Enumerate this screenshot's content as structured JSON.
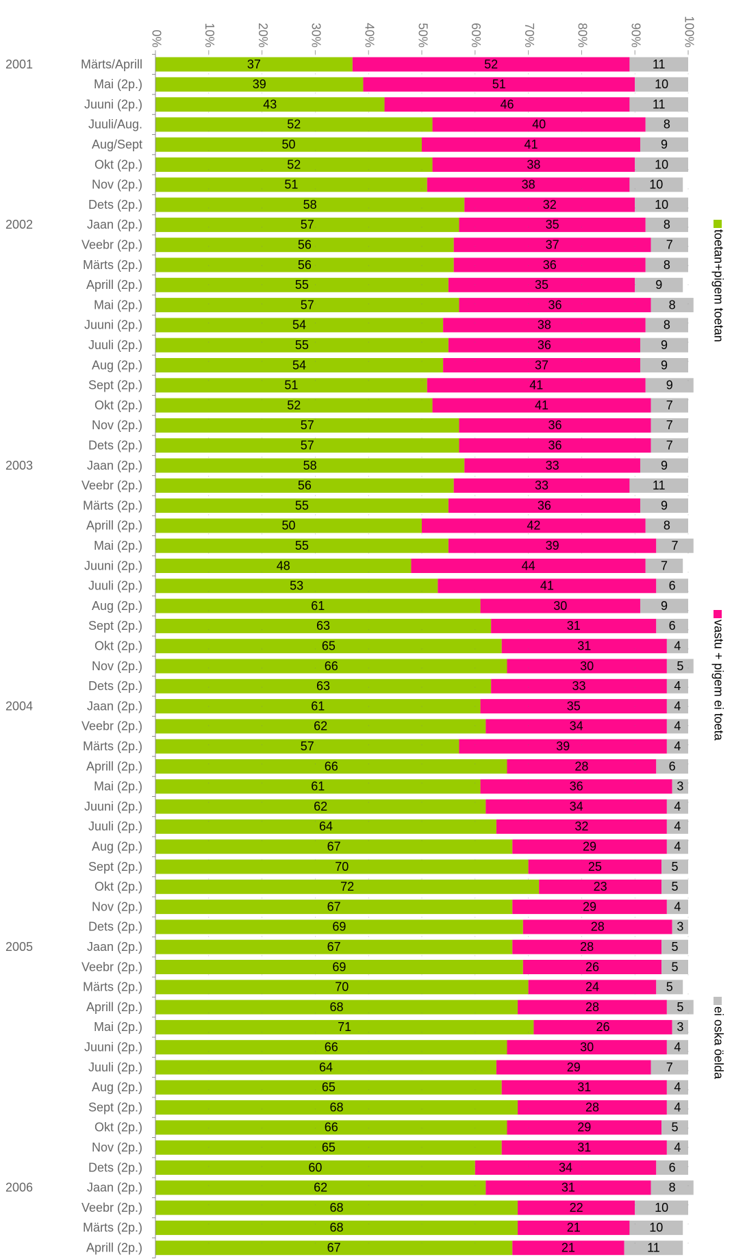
{
  "chart_data": {
    "type": "stacked-barh",
    "xlim": [
      0,
      100
    ],
    "xticks": [
      {
        "value": 0,
        "label": "0%"
      },
      {
        "value": 10,
        "label": "10%"
      },
      {
        "value": 20,
        "label": "20%"
      },
      {
        "value": 30,
        "label": "30%"
      },
      {
        "value": 40,
        "label": "40%"
      },
      {
        "value": 50,
        "label": "50%"
      },
      {
        "value": 60,
        "label": "60%"
      },
      {
        "value": 70,
        "label": "70%"
      },
      {
        "value": 80,
        "label": "80%"
      },
      {
        "value": 90,
        "label": "90%"
      },
      {
        "value": 100,
        "label": "100%"
      }
    ],
    "grid": true,
    "legend": "right",
    "year_labels": [
      "2001",
      null,
      null,
      null,
      null,
      null,
      null,
      null,
      "2002",
      null,
      null,
      null,
      null,
      null,
      null,
      null,
      null,
      null,
      null,
      null,
      "2003",
      null,
      null,
      null,
      null,
      null,
      null,
      null,
      null,
      null,
      null,
      null,
      "2004",
      null,
      null,
      null,
      null,
      null,
      null,
      null,
      null,
      null,
      null,
      null,
      "2005",
      null,
      null,
      null,
      null,
      null,
      null,
      null,
      null,
      null,
      null,
      null,
      "2006",
      null,
      null,
      null
    ],
    "categories": [
      "Märts/Aprill",
      "Mai (2p.)",
      "Juuni (2p.)",
      "Juuli/Aug.",
      "Aug/Sept",
      "Okt (2p.)",
      "Nov (2p.)",
      "Dets (2p.)",
      "Jaan (2p.)",
      "Veebr (2p.)",
      "Märts (2p.)",
      "Aprill (2p.)",
      "Mai (2p.)",
      "Juuni (2p.)",
      "Juuli (2p.)",
      "Aug (2p.)",
      "Sept (2p.)",
      "Okt (2p.)",
      "Nov (2p.)",
      "Dets (2p.)",
      "Jaan (2p.)",
      "Veebr (2p.)",
      "Märts (2p.)",
      "Aprill (2p.)",
      "Mai (2p.)",
      "Juuni (2p.)",
      "Juuli (2p.)",
      "Aug (2p.)",
      "Sept (2p.)",
      "Okt (2p.)",
      "Nov (2p.)",
      "Dets (2p.)",
      "Jaan (2p.)",
      "Veebr (2p.)",
      "Märts (2p.)",
      "Aprill (2p.)",
      "Mai (2p.)",
      "Juuni (2p.)",
      "Juuli (2p.)",
      "Aug (2p.)",
      "Sept (2p.)",
      "Okt (2p.)",
      "Nov (2p.)",
      "Dets (2p.)",
      "Jaan (2p.)",
      "Veebr (2p.)",
      "Märts (2p.)",
      "Aprill (2p.)",
      "Mai (2p.)",
      "Juuni (2p.)",
      "Juuli (2p.)",
      "Aug (2p.)",
      "Sept (2p.)",
      "Okt (2p.)",
      "Nov (2p.)",
      "Dets (2p.)",
      "Jaan (2p.)",
      "Veebr (2p.)",
      "Märts (2p.)",
      "Aprill (2p.)"
    ],
    "series": [
      {
        "name": "toetan+pigem toetan",
        "color": "#99cc00",
        "values": [
          37,
          39,
          43,
          52,
          50,
          52,
          51,
          58,
          57,
          56,
          56,
          55,
          57,
          54,
          55,
          54,
          51,
          52,
          57,
          57,
          58,
          56,
          55,
          50,
          55,
          48,
          53,
          61,
          63,
          65,
          66,
          63,
          61,
          62,
          57,
          66,
          61,
          62,
          64,
          67,
          70,
          72,
          67,
          69,
          67,
          69,
          70,
          68,
          71,
          66,
          64,
          65,
          68,
          66,
          65,
          60,
          62,
          68,
          68,
          67
        ]
      },
      {
        "name": "vastu + pigem ei toeta",
        "color": "#ff0a8c",
        "values": [
          52,
          51,
          46,
          40,
          41,
          38,
          38,
          32,
          35,
          37,
          36,
          35,
          36,
          38,
          36,
          37,
          41,
          41,
          36,
          36,
          33,
          33,
          36,
          42,
          39,
          44,
          41,
          30,
          31,
          31,
          30,
          33,
          35,
          34,
          39,
          28,
          36,
          34,
          32,
          29,
          25,
          23,
          29,
          28,
          28,
          26,
          24,
          28,
          26,
          30,
          29,
          31,
          28,
          29,
          31,
          34,
          31,
          22,
          21,
          21
        ]
      },
      {
        "name": "ei oska öelda",
        "color": "#c0c0c0",
        "values": [
          11,
          10,
          11,
          8,
          9,
          10,
          10,
          10,
          8,
          7,
          8,
          9,
          8,
          8,
          9,
          9,
          9,
          7,
          7,
          7,
          9,
          11,
          9,
          8,
          7,
          7,
          6,
          9,
          6,
          4,
          5,
          4,
          4,
          4,
          4,
          6,
          3,
          4,
          4,
          4,
          5,
          5,
          4,
          3,
          5,
          5,
          5,
          5,
          3,
          4,
          7,
          4,
          4,
          5,
          4,
          6,
          8,
          10,
          10,
          11
        ]
      }
    ]
  }
}
